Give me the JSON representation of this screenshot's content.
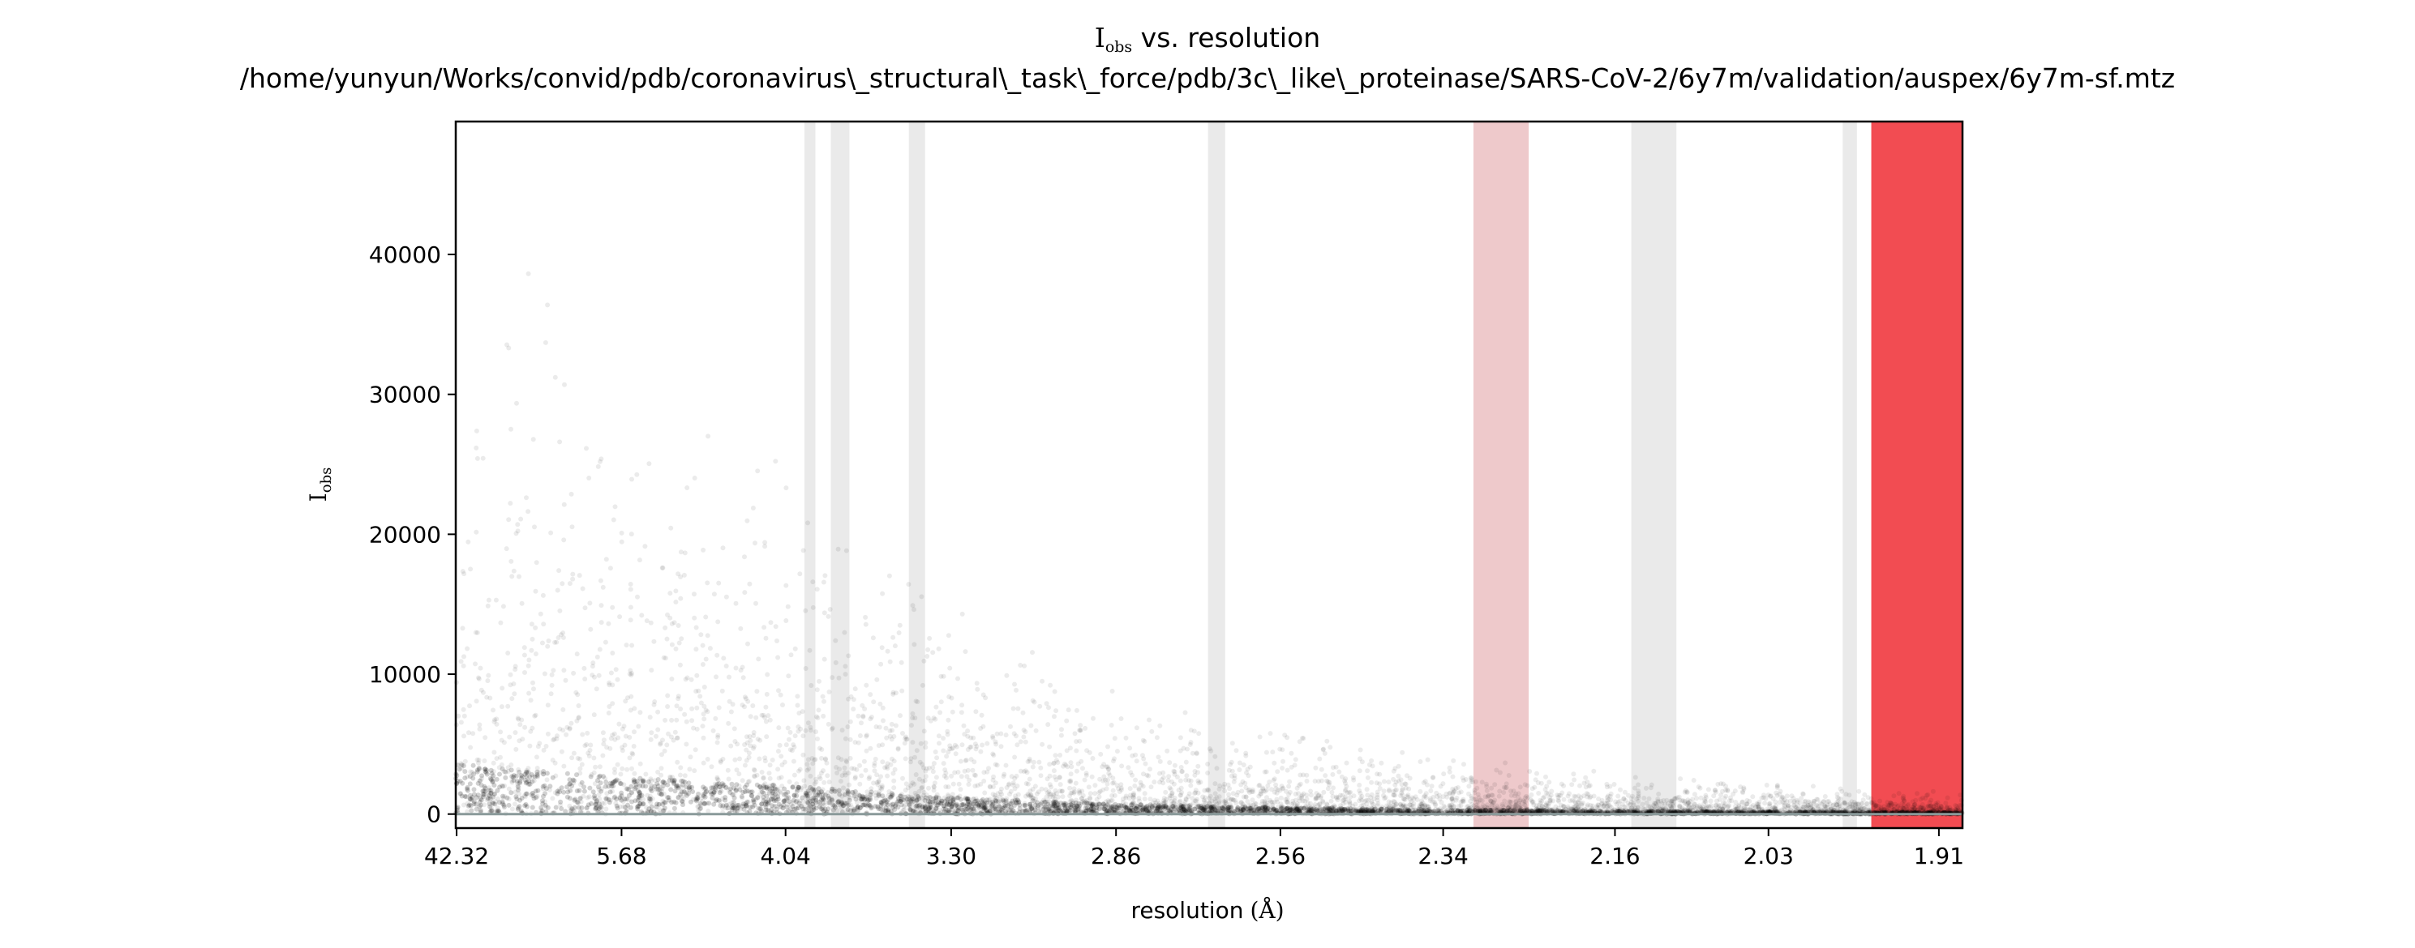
{
  "chart_data": {
    "type": "scatter",
    "title": {
      "main": "I",
      "main_sub": "obs",
      "main_suffix": " vs. resolution",
      "path": "/home/yunyun/Works/convid/pdb/coronavirus\\_structural\\_task\\_force/pdb/3c\\_like\\_proteinase/SARS-CoV-2/6y7m/validation/auspex/6y7m-sf.mtz"
    },
    "xlabel": "resolution",
    "xlabel_unit": "(Å)",
    "ylabel": "I",
    "ylabel_sub": "obs",
    "x_scale": "inverse-square resolution (1/d²)",
    "xlim_resolution": [
      50.0,
      1.895
    ],
    "ylim": [
      -1000,
      49500
    ],
    "x_ticks": [
      {
        "d": 42.32,
        "label": "42.32"
      },
      {
        "d": 5.68,
        "label": "5.68"
      },
      {
        "d": 4.04,
        "label": "4.04"
      },
      {
        "d": 3.3,
        "label": "3.30"
      },
      {
        "d": 2.86,
        "label": "2.86"
      },
      {
        "d": 2.56,
        "label": "2.56"
      },
      {
        "d": 2.34,
        "label": "2.34"
      },
      {
        "d": 2.16,
        "label": "2.16"
      },
      {
        "d": 2.03,
        "label": "2.03"
      },
      {
        "d": 1.91,
        "label": "1.91"
      }
    ],
    "y_ticks": [
      {
        "value": 0,
        "label": "0"
      },
      {
        "value": 10000,
        "label": "10000"
      },
      {
        "value": 20000,
        "label": "20000"
      },
      {
        "value": 30000,
        "label": "30000"
      },
      {
        "value": 40000,
        "label": "40000"
      }
    ],
    "ice_ring_bands": [
      {
        "d_max": 3.93,
        "d_min": 3.87,
        "color": "#d9d9d9",
        "opacity": 0.55
      },
      {
        "d_max": 3.79,
        "d_min": 3.7,
        "color": "#d9d9d9",
        "opacity": 0.55
      },
      {
        "d_max": 3.45,
        "d_min": 3.39,
        "color": "#d9d9d9",
        "opacity": 0.55
      },
      {
        "d_max": 2.68,
        "d_min": 2.65,
        "color": "#d9d9d9",
        "opacity": 0.55
      },
      {
        "d_max": 2.305,
        "d_min": 2.245,
        "color": "#e3a5a8",
        "opacity": 0.6
      },
      {
        "d_max": 2.145,
        "d_min": 2.105,
        "color": "#d9d9d9",
        "opacity": 0.55
      },
      {
        "d_max": 1.975,
        "d_min": 1.965,
        "color": "#d9d9d9",
        "opacity": 0.55
      },
      {
        "d_max": 1.955,
        "d_min": 1.895,
        "color": "#f0333a",
        "opacity": 0.88
      }
    ],
    "baseline_value": 0,
    "scatter_series": {
      "name": "",
      "color": "#000000",
      "point_opacity": 0.08,
      "trend_envelope": [
        {
          "d": 42.32,
          "y": 30000
        },
        {
          "d": 5.68,
          "y": 22000
        },
        {
          "d": 4.04,
          "y": 17000
        },
        {
          "d": 3.3,
          "y": 10000
        },
        {
          "d": 2.86,
          "y": 6000
        },
        {
          "d": 2.56,
          "y": 4000
        },
        {
          "d": 2.34,
          "y": 2800
        },
        {
          "d": 2.16,
          "y": 2000
        },
        {
          "d": 2.03,
          "y": 1500
        },
        {
          "d": 1.91,
          "y": 1100
        }
      ]
    },
    "grid": false,
    "legend": "none"
  }
}
